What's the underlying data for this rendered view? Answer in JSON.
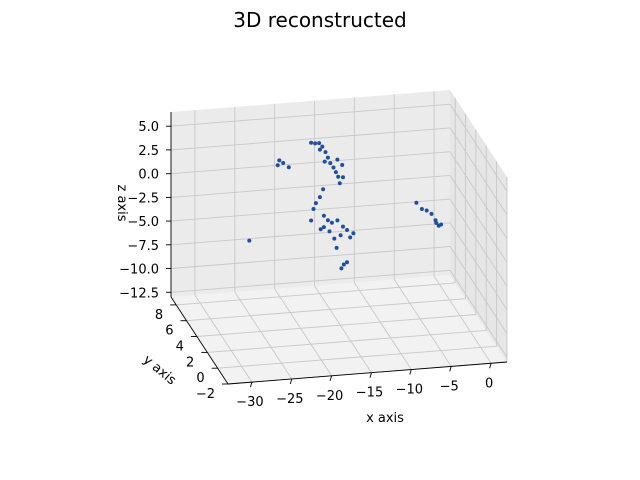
{
  "chart_data": {
    "type": "scatter",
    "title": "3D reconstructed",
    "xlabel": "x axis",
    "ylabel": "y axis",
    "zlabel": "z axis",
    "xlim": [
      -33,
      2
    ],
    "ylim": [
      -2,
      9
    ],
    "zlim": [
      -13,
      6.5
    ],
    "x_ticks": [
      -30,
      -25,
      -20,
      -15,
      -10,
      -5,
      0
    ],
    "y_ticks": [
      -2,
      0,
      2,
      4,
      6,
      8
    ],
    "z_ticks": [
      5.0,
      2.5,
      0.0,
      -2.5,
      -5.0,
      -7.5,
      -10.0,
      -12.5
    ],
    "x_tick_labels": [
      "−30",
      "−25",
      "−20",
      "−15",
      "−10",
      "−5",
      "0"
    ],
    "y_tick_labels": [
      "−2",
      "0",
      "2",
      "4",
      "6",
      "8"
    ],
    "z_tick_labels": [
      "5.0",
      "2.5",
      "0.0",
      "−2.5",
      "−5.0",
      "−7.5",
      "−10.0",
      "−12.5"
    ],
    "grid": true,
    "marker_color": "#1f4fa0",
    "points": [
      [
        -17.5,
        5.8,
        4.9
      ],
      [
        -17.0,
        5.8,
        4.8
      ],
      [
        -16.5,
        5.8,
        4.8
      ],
      [
        -16.1,
        5.8,
        4.4
      ],
      [
        -15.7,
        5.8,
        3.8
      ],
      [
        -15.4,
        5.8,
        3.2
      ],
      [
        -15.1,
        5.8,
        2.6
      ],
      [
        -14.7,
        5.8,
        2.1
      ],
      [
        -14.4,
        5.8,
        1.6
      ],
      [
        -14.1,
        5.8,
        1.1
      ],
      [
        -13.9,
        5.8,
        0.4
      ],
      [
        -13.6,
        5.8,
        2.3
      ],
      [
        -13.5,
        5.8,
        1.0
      ],
      [
        -14.2,
        5.8,
        2.9
      ],
      [
        -15.8,
        5.8,
        2.8
      ],
      [
        -16.4,
        5.8,
        4.1
      ],
      [
        -21.5,
        5.8,
        3.3
      ],
      [
        -21.0,
        5.8,
        3.0
      ],
      [
        -21.7,
        5.8,
        2.8
      ],
      [
        -20.3,
        5.8,
        2.5
      ],
      [
        -16.4,
        5.8,
        -0.9
      ],
      [
        -16.9,
        5.8,
        -1.5
      ],
      [
        -17.2,
        5.8,
        -2.1
      ],
      [
        -15.9,
        5.8,
        -2.9
      ],
      [
        -15.4,
        5.8,
        -3.4
      ],
      [
        -14.9,
        5.8,
        -3.7
      ],
      [
        -14.2,
        5.8,
        -3.5
      ],
      [
        -13.5,
        5.8,
        -4.2
      ],
      [
        -13.0,
        5.8,
        -4.6
      ],
      [
        -12.6,
        5.8,
        -5.4
      ],
      [
        -12.2,
        5.8,
        -5.0
      ],
      [
        -13.8,
        5.8,
        -5.1
      ],
      [
        -14.6,
        5.8,
        -5.4
      ],
      [
        -15.2,
        5.8,
        -4.6
      ],
      [
        -15.9,
        5.8,
        -4.1
      ],
      [
        -14.3,
        5.8,
        -6.4
      ],
      [
        -16.0,
        5.8,
        -0.1
      ],
      [
        -17.5,
        5.8,
        -3.3
      ],
      [
        -16.3,
        5.8,
        -4.3
      ],
      [
        -13.4,
        5.8,
        -8.2
      ],
      [
        -13.0,
        5.8,
        -8.0
      ],
      [
        -13.7,
        5.8,
        -8.6
      ],
      [
        -4.3,
        5.8,
        -2.3
      ],
      [
        -3.6,
        5.8,
        -3.0
      ],
      [
        -3.0,
        5.8,
        -3.2
      ],
      [
        -2.4,
        5.8,
        -3.6
      ],
      [
        -1.8,
        5.8,
        -4.6
      ],
      [
        -1.5,
        5.8,
        -4.9
      ],
      [
        -1.9,
        5.8,
        -4.3
      ],
      [
        -1.2,
        5.8,
        -4.8
      ],
      [
        -30.0,
        -1.5,
        1.5
      ]
    ]
  }
}
